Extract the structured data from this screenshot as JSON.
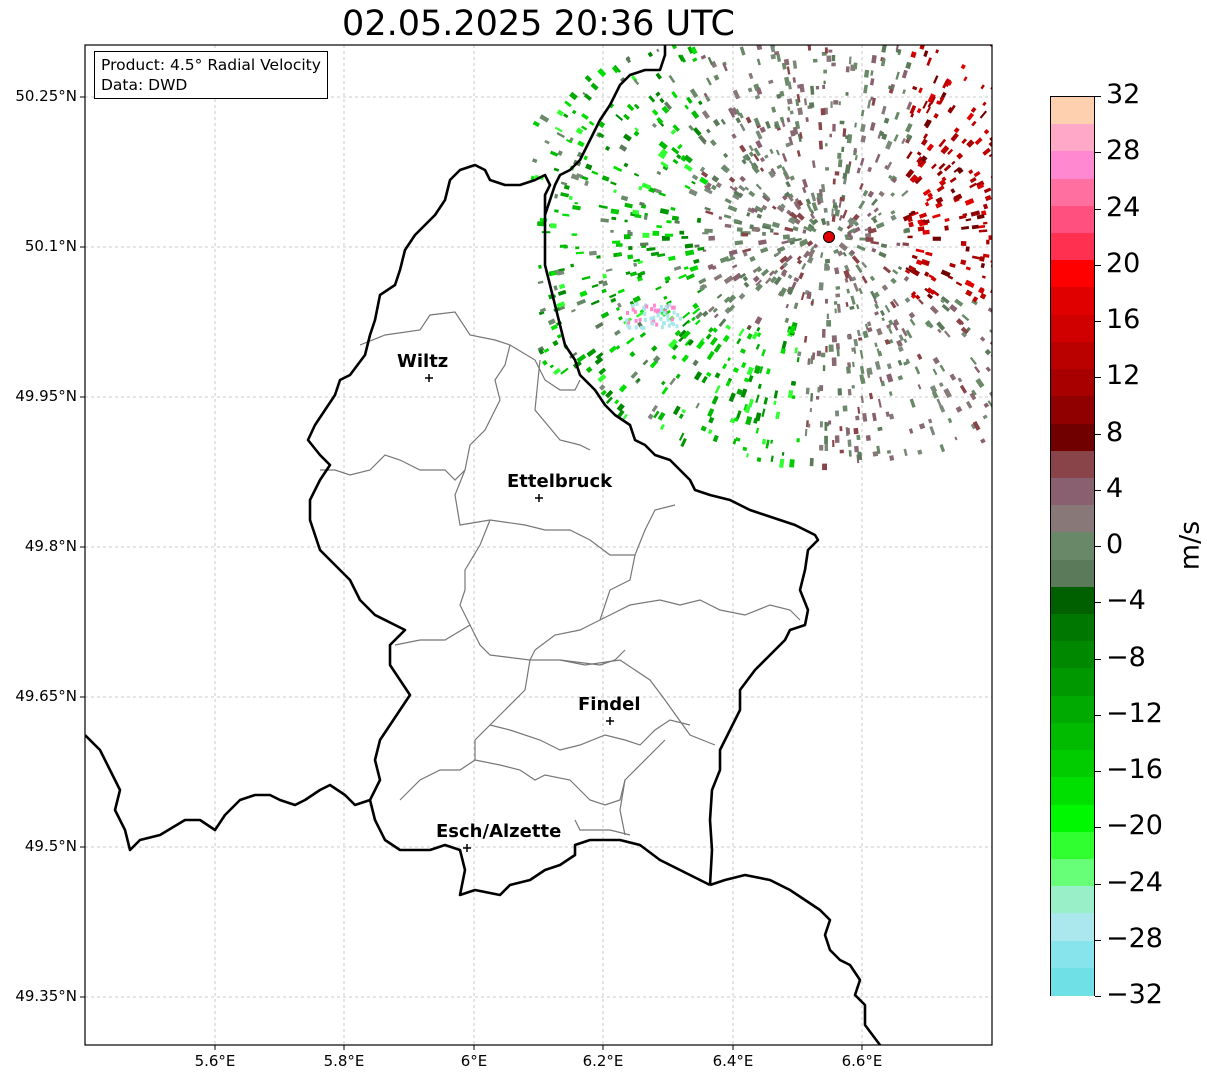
{
  "title": "02.05.2025 20:36 UTC",
  "info": {
    "product": "Product: 4.5° Radial Velocity",
    "source": "Data: DWD"
  },
  "axes": {
    "lat_labels": [
      "50.25°N",
      "50.1°N",
      "49.95°N",
      "49.8°N",
      "49.65°N",
      "49.5°N",
      "49.35°N"
    ],
    "lon_labels": [
      "5.6°E",
      "5.8°E",
      "6°E",
      "6.2°E",
      "6.4°E",
      "6.6°E"
    ]
  },
  "cities": [
    {
      "name": "Wiltz"
    },
    {
      "name": "Ettelbruck"
    },
    {
      "name": "Findel"
    },
    {
      "name": "Esch/Alzette"
    }
  ],
  "colorbar": {
    "unit": "m/s",
    "ticks": [
      "32",
      "28",
      "24",
      "20",
      "16",
      "12",
      "8",
      "4",
      "0",
      "−4",
      "−8",
      "−12",
      "−16",
      "−20",
      "−24",
      "−28",
      "−32"
    ],
    "colors": [
      "#ffd0b0",
      "#ffa8c8",
      "#ff88d0",
      "#ff70a0",
      "#ff5080",
      "#ff3050",
      "#ff0000",
      "#e00000",
      "#d00000",
      "#bb0000",
      "#a80000",
      "#900000",
      "#700000",
      "#884448",
      "#886070",
      "#887878",
      "#688868",
      "#5a7a5a",
      "#006000",
      "#007800",
      "#008800",
      "#009800",
      "#00aa00",
      "#00bb00",
      "#00cc00",
      "#00e000",
      "#00f800",
      "#30ff30",
      "#66ff77",
      "#99f0c8",
      "#aae8ee",
      "#88e4ec",
      "#6ee0e6"
    ]
  }
}
